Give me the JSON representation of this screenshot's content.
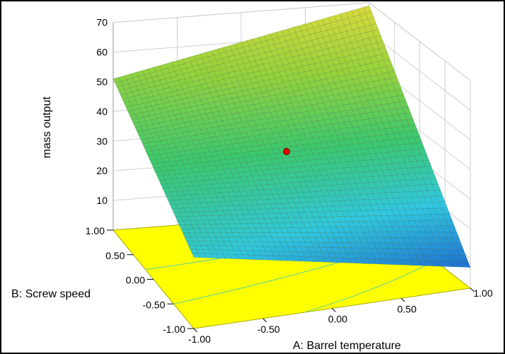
{
  "chart_data": {
    "type": "surface",
    "xlabel": "A: Barrel temperature",
    "ylabel": "B: Screw speed",
    "zlabel": "mass output",
    "x_ticks": [
      "-1.00",
      "-0.50",
      "0.00",
      "0.50",
      "1.00"
    ],
    "y_ticks": [
      "-1.00",
      "-0.50",
      "0.00",
      "0.50",
      "1.00"
    ],
    "z_ticks": [
      "10",
      "20",
      "30",
      "40",
      "50",
      "60",
      "70"
    ],
    "xlim": [
      -1,
      1
    ],
    "ylim": [
      -1,
      1
    ],
    "zlim": [
      0,
      70
    ],
    "surface_corners": [
      {
        "A": -1,
        "B": 1,
        "z": 51
      },
      {
        "A": 1,
        "B": 1,
        "z": 69
      },
      {
        "A": 1,
        "B": -1,
        "z": 7
      },
      {
        "A": -1,
        "B": -1,
        "z": 24
      }
    ],
    "design_point": {
      "A": 0,
      "B": 0,
      "z": 38,
      "color": "#e60000"
    },
    "colormap": [
      "#1e6fd0",
      "#30c8e0",
      "#3cc86e",
      "#96d23c",
      "#d8da3c"
    ],
    "floor_color": "#ffff00",
    "grid": true
  }
}
